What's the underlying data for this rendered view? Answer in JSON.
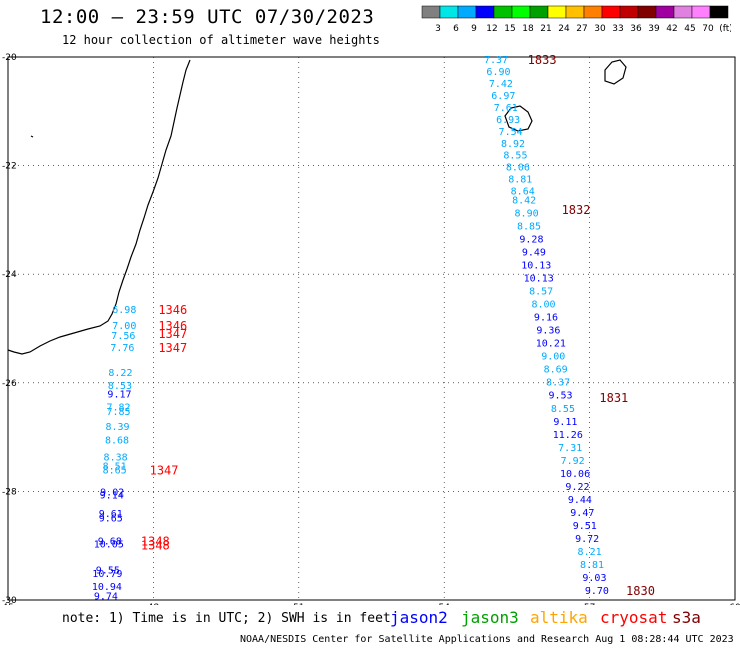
{
  "header": {
    "title": "12:00 – 23:59 UTC 07/30/2023",
    "subtitle": "12 hour collection of altimeter wave heights"
  },
  "colorbar": {
    "colors": [
      "#808080",
      "#00e5e5",
      "#00aaff",
      "#0000ff",
      "#00c000",
      "#00ff00",
      "#00a000",
      "#ffff00",
      "#ffc000",
      "#ff8000",
      "#ff0000",
      "#c00000",
      "#800000",
      "#a000a0",
      "#e080e0",
      "#ff80ff",
      "#000000"
    ],
    "labels": [
      "3",
      "6",
      "9",
      "12",
      "15",
      "18",
      "21",
      "24",
      "27",
      "30",
      "33",
      "36",
      "39",
      "42",
      "45",
      "70",
      "(ft)"
    ]
  },
  "map": {
    "x_ticks": [
      "45",
      "48",
      "51",
      "54",
      "57",
      "60"
    ],
    "y_ticks": [
      "-20",
      "-22",
      "-24",
      "-26",
      "-28",
      "-30"
    ],
    "x_range": [
      45,
      60
    ],
    "y_range": [
      -30,
      -20
    ]
  },
  "tracks": {
    "east": [
      {
        "v": "7.37",
        "x": 55.07,
        "y": -20.04,
        "c": "#00aaff"
      },
      {
        "v": "6.90",
        "x": 55.12,
        "y": -20.26,
        "c": "#00aaff"
      },
      {
        "v": "7.42",
        "x": 55.17,
        "y": -20.48,
        "c": "#00aaff"
      },
      {
        "v": "6.97",
        "x": 55.22,
        "y": -20.7,
        "c": "#00aaff"
      },
      {
        "v": "7.61",
        "x": 55.27,
        "y": -20.92,
        "c": "#00aaff"
      },
      {
        "v": "6.93",
        "x": 55.32,
        "y": -21.14,
        "c": "#00aaff"
      },
      {
        "v": "7.54",
        "x": 55.37,
        "y": -21.36,
        "c": "#00aaff"
      },
      {
        "v": "8.92",
        "x": 55.42,
        "y": -21.58,
        "c": "#00aaff"
      },
      {
        "v": "8.55",
        "x": 55.47,
        "y": -21.8,
        "c": "#00aaff"
      },
      {
        "v": "8.06",
        "x": 55.52,
        "y": -22.02,
        "c": "#00aaff"
      },
      {
        "v": "8.81",
        "x": 55.57,
        "y": -22.24,
        "c": "#00aaff"
      },
      {
        "v": "8.64",
        "x": 55.62,
        "y": -22.46,
        "c": "#00aaff"
      },
      {
        "v": "8.42",
        "x": 55.65,
        "y": -22.62,
        "c": "#00aaff"
      },
      {
        "v": "8.90",
        "x": 55.7,
        "y": -22.86,
        "c": "#00aaff"
      },
      {
        "v": "8.85",
        "x": 55.75,
        "y": -23.1,
        "c": "#00aaff"
      },
      {
        "v": "9.28",
        "x": 55.8,
        "y": -23.34,
        "c": "#0000ff"
      },
      {
        "v": "9.49",
        "x": 55.85,
        "y": -23.58,
        "c": "#0000ff"
      },
      {
        "v": "10.13",
        "x": 55.9,
        "y": -23.82,
        "c": "#0000ff"
      },
      {
        "v": "10.13",
        "x": 55.95,
        "y": -24.06,
        "c": "#0000ff"
      },
      {
        "v": "8.57",
        "x": 56.0,
        "y": -24.3,
        "c": "#00aaff"
      },
      {
        "v": "8.00",
        "x": 56.05,
        "y": -24.54,
        "c": "#00aaff"
      },
      {
        "v": "9.16",
        "x": 56.1,
        "y": -24.78,
        "c": "#0000ff"
      },
      {
        "v": "9.36",
        "x": 56.15,
        "y": -25.02,
        "c": "#0000ff"
      },
      {
        "v": "10.21",
        "x": 56.2,
        "y": -25.26,
        "c": "#0000ff"
      },
      {
        "v": "9.00",
        "x": 56.25,
        "y": -25.5,
        "c": "#00aaff"
      },
      {
        "v": "8.69",
        "x": 56.3,
        "y": -25.74,
        "c": "#00aaff"
      },
      {
        "v": "8.37",
        "x": 56.35,
        "y": -25.98,
        "c": "#00aaff"
      },
      {
        "v": "9.53",
        "x": 56.4,
        "y": -26.22,
        "c": "#0000ff"
      },
      {
        "v": "8.55",
        "x": 56.45,
        "y": -26.46,
        "c": "#00aaff"
      },
      {
        "v": "9.11",
        "x": 56.5,
        "y": -26.7,
        "c": "#0000ff"
      },
      {
        "v": "11.26",
        "x": 56.55,
        "y": -26.94,
        "c": "#0000ff"
      },
      {
        "v": "7.31",
        "x": 56.6,
        "y": -27.18,
        "c": "#00aaff"
      },
      {
        "v": "7.92",
        "x": 56.65,
        "y": -27.42,
        "c": "#00aaff"
      },
      {
        "v": "10.06",
        "x": 56.7,
        "y": -27.66,
        "c": "#0000ff"
      },
      {
        "v": "9.22",
        "x": 56.75,
        "y": -27.9,
        "c": "#0000ff"
      },
      {
        "v": "9.44",
        "x": 56.8,
        "y": -28.14,
        "c": "#0000ff"
      },
      {
        "v": "9.47",
        "x": 56.85,
        "y": -28.38,
        "c": "#0000ff"
      },
      {
        "v": "9.51",
        "x": 56.9,
        "y": -28.62,
        "c": "#0000ff"
      },
      {
        "v": "9.72",
        "x": 56.95,
        "y": -28.86,
        "c": "#0000ff"
      },
      {
        "v": "8.21",
        "x": 57.0,
        "y": -29.1,
        "c": "#00aaff"
      },
      {
        "v": "8.81",
        "x": 57.05,
        "y": -29.34,
        "c": "#00aaff"
      },
      {
        "v": "9.03",
        "x": 57.1,
        "y": -29.58,
        "c": "#0000ff"
      },
      {
        "v": "9.70",
        "x": 57.15,
        "y": -29.82,
        "c": "#0000ff"
      }
    ],
    "west": [
      {
        "v": "6.98",
        "x": 47.4,
        "y": -24.64,
        "c": "#00aaff"
      },
      {
        "v": "7.00",
        "x": 47.4,
        "y": -24.94,
        "c": "#00aaff"
      },
      {
        "v": "7.56",
        "x": 47.38,
        "y": -25.12,
        "c": "#00aaff"
      },
      {
        "v": "7.76",
        "x": 47.36,
        "y": -25.34,
        "c": "#00aaff"
      },
      {
        "v": "8.22",
        "x": 47.32,
        "y": -25.8,
        "c": "#00aaff"
      },
      {
        "v": "8.53",
        "x": 47.31,
        "y": -26.04,
        "c": "#00aaff"
      },
      {
        "v": "9.17",
        "x": 47.3,
        "y": -26.2,
        "c": "#0000ff"
      },
      {
        "v": "7.82",
        "x": 47.28,
        "y": -26.44,
        "c": "#00aaff"
      },
      {
        "v": "7.85",
        "x": 47.28,
        "y": -26.52,
        "c": "#00aaff"
      },
      {
        "v": "8.39",
        "x": 47.26,
        "y": -26.8,
        "c": "#00aaff"
      },
      {
        "v": "8.68",
        "x": 47.25,
        "y": -27.04,
        "c": "#00aaff"
      },
      {
        "v": "8.38",
        "x": 47.22,
        "y": -27.36,
        "c": "#00aaff"
      },
      {
        "v": "8.51",
        "x": 47.2,
        "y": -27.52,
        "c": "#00aaff"
      },
      {
        "v": "8.65",
        "x": 47.2,
        "y": -27.6,
        "c": "#00aaff"
      },
      {
        "v": "9.02",
        "x": 47.15,
        "y": -28.0,
        "c": "#0000ff"
      },
      {
        "v": "9.14",
        "x": 47.14,
        "y": -28.06,
        "c": "#0000ff"
      },
      {
        "v": "9.61",
        "x": 47.12,
        "y": -28.4,
        "c": "#0000ff"
      },
      {
        "v": "9.65",
        "x": 47.12,
        "y": -28.48,
        "c": "#0000ff"
      },
      {
        "v": "9.68",
        "x": 47.1,
        "y": -28.9,
        "c": "#0000ff"
      },
      {
        "v": "10.05",
        "x": 47.08,
        "y": -28.96,
        "c": "#0000ff"
      },
      {
        "v": "9.55",
        "x": 47.06,
        "y": -29.44,
        "c": "#0000ff"
      },
      {
        "v": "10.79",
        "x": 47.05,
        "y": -29.5,
        "c": "#0000ff"
      },
      {
        "v": "10.94",
        "x": 47.04,
        "y": -29.74,
        "c": "#0000ff"
      },
      {
        "v": "9.74",
        "x": 47.02,
        "y": -29.92,
        "c": "#0000ff"
      }
    ],
    "times": [
      {
        "v": "1833",
        "x": 56.02,
        "y": -20.04,
        "c": "#800000"
      },
      {
        "v": "1832",
        "x": 56.72,
        "y": -22.8,
        "c": "#800000"
      },
      {
        "v": "1831",
        "x": 57.5,
        "y": -26.26,
        "c": "#800000"
      },
      {
        "v": "1830",
        "x": 58.05,
        "y": -29.82,
        "c": "#800000"
      },
      {
        "v": "1346",
        "x": 48.4,
        "y": -24.64,
        "c": "#ff0000"
      },
      {
        "v": "1346",
        "x": 48.4,
        "y": -24.94,
        "c": "#ff0000"
      },
      {
        "v": "1347",
        "x": 48.4,
        "y": -25.08,
        "c": "#ff0000"
      },
      {
        "v": "1347",
        "x": 48.4,
        "y": -25.34,
        "c": "#ff0000"
      },
      {
        "v": "1347",
        "x": 48.22,
        "y": -27.6,
        "c": "#ff0000"
      },
      {
        "v": "1348",
        "x": 48.04,
        "y": -28.9,
        "c": "#ff0000"
      },
      {
        "v": "1348",
        "x": 48.04,
        "y": -28.98,
        "c": "#ff0000"
      }
    ]
  },
  "footer": {
    "note": "note: 1) Time is in UTC; 2) SWH is in feet",
    "sat_jason2": "jason2",
    "sat_jason3": "jason3",
    "sat_altika": "altika",
    "sat_cryosat": "cryosat",
    "sat_s3a": "s3a",
    "credit": "NOAA/NESDIS Center for Satellite Applications and Research    Aug  1 08:28:44 UTC 2023",
    "colors": {
      "jason2": "#0000ff",
      "jason3": "#00a000",
      "altika": "#ffa500",
      "cryosat": "#ff0000",
      "s3a": "#800000"
    }
  }
}
